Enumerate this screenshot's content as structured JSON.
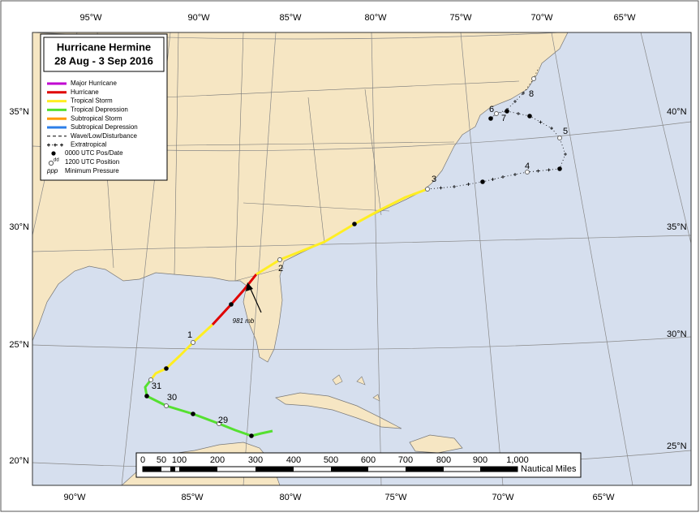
{
  "header": {
    "title": "Hurricane Hermine",
    "subtitle": "28 Aug - 3 Sep 2016"
  },
  "longitude_labels_top": [
    "95°W",
    "90°W",
    "85°W",
    "80°W",
    "75°W",
    "70°W",
    "65°W"
  ],
  "longitude_labels_bottom": [
    "90°W",
    "85°W",
    "80°W",
    "75°W",
    "70°W",
    "65°W"
  ],
  "latitude_labels_left": [
    "35°N",
    "30°N",
    "25°N",
    "20°N"
  ],
  "latitude_labels_right": [
    "40°N",
    "35°N",
    "30°N",
    "25°N"
  ],
  "legend": {
    "items": [
      "Major Hurricane",
      "Hurricane",
      "Tropical Storm",
      "Tropical Depression",
      "Subtropical Storm",
      "Subtropical Depression",
      "Wave/Low/Disturbance",
      "Extratropical"
    ],
    "symbols": [
      {
        "label": "0000 UTC Pos/Date"
      },
      {
        "superscript": "dd",
        "label": "1200 UTC Position"
      },
      {
        "prefix": "ppp",
        "label": "Minimum Pressure"
      }
    ]
  },
  "track_dates": [
    "29",
    "30",
    "31",
    "1",
    "2",
    "3",
    "4",
    "5",
    "6",
    "7",
    "8"
  ],
  "annotation": "981 mb",
  "scale": {
    "ticks": [
      "0",
      "50",
      "100",
      "200",
      "300",
      "400",
      "500",
      "600",
      "700",
      "800",
      "900",
      "1,000"
    ],
    "unit": "Nautical Miles"
  }
}
